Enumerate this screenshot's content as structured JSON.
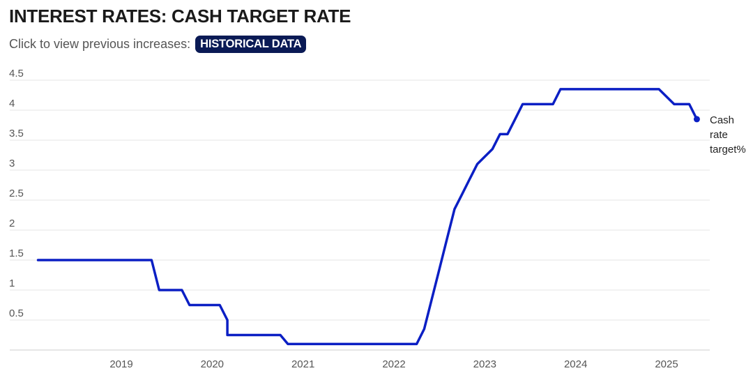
{
  "header": {
    "title": "INTEREST RATES: CASH TARGET RATE",
    "subtitle": "Click to view previous increases:",
    "button_label": "HISTORICAL DATA"
  },
  "colors": {
    "line": "#0b1fc4",
    "grid": "#e6e6e6",
    "button_bg": "#0a1a55"
  },
  "chart_data": {
    "type": "line",
    "title": "INTEREST RATES: CASH TARGET RATE",
    "xlabel": "",
    "ylabel": "",
    "ylim": [
      0,
      4.5
    ],
    "yticks": [
      "0.5",
      "1",
      "1.5",
      "2",
      "2.5",
      "3",
      "3.5",
      "4",
      "4.5"
    ],
    "xticks": [
      "2019",
      "2020",
      "2021",
      "2022",
      "2023",
      "2024",
      "2025"
    ],
    "grid": "horizontal",
    "series": [
      {
        "name": "Cash rate target%",
        "x": [
          "2018-02",
          "2019-05",
          "2019-06",
          "2019-09",
          "2019-10",
          "2020-02",
          "2020-03",
          "2020-03",
          "2020-10",
          "2020-11",
          "2022-04",
          "2022-05",
          "2022-06",
          "2022-07",
          "2022-08",
          "2022-09",
          "2022-10",
          "2022-11",
          "2022-12",
          "2023-02",
          "2023-03",
          "2023-04",
          "2023-05",
          "2023-06",
          "2023-07",
          "2023-10",
          "2023-11",
          "2024-12",
          "2025-02",
          "2025-04",
          "2025-05"
        ],
        "y": [
          1.5,
          1.5,
          1.0,
          1.0,
          0.75,
          0.75,
          0.5,
          0.25,
          0.25,
          0.1,
          0.1,
          0.35,
          0.85,
          1.35,
          1.85,
          2.35,
          2.6,
          2.85,
          3.1,
          3.35,
          3.6,
          3.6,
          3.85,
          4.1,
          4.1,
          4.1,
          4.35,
          4.35,
          4.1,
          4.1,
          3.85
        ]
      }
    ],
    "end_label": [
      "Cash",
      "rate",
      "target%"
    ],
    "legend": "end-of-line"
  }
}
